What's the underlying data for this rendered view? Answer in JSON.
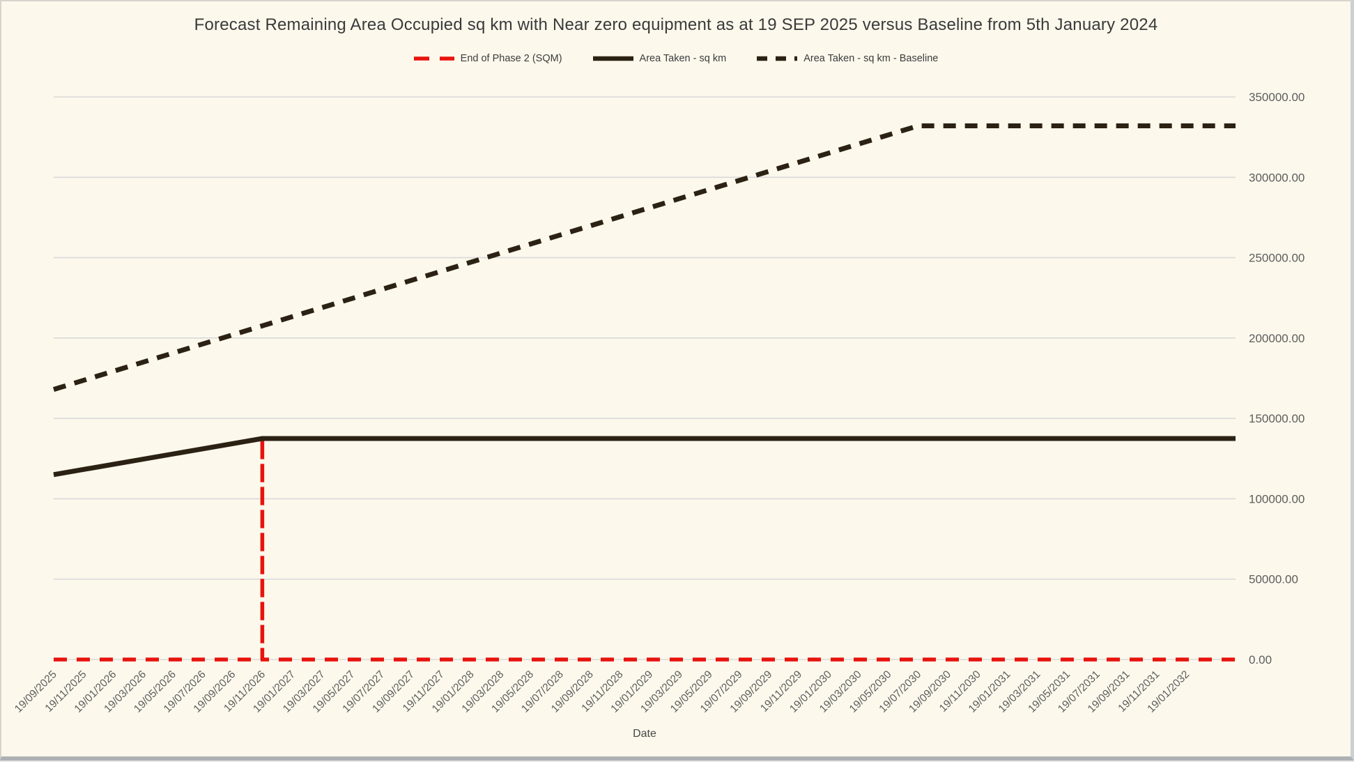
{
  "window": {
    "background_color": "#fcf8ec",
    "gridline_color": "#d9d9d9",
    "axis_text_color": "#5d5d5d",
    "title_text_color": "#3a3a3a"
  },
  "chart_data": {
    "type": "line",
    "title": "Forecast Remaining Area Occupied sq km with Near zero equipment as at 19 SEP 2025 versus Baseline from 5th January 2024",
    "xlabel": "Date",
    "ylabel": "",
    "ylim": [
      0,
      350000
    ],
    "y_tick_labels": [
      "0.00",
      "50000.00",
      "100000.00",
      "150000.00",
      "200000.00",
      "250000.00",
      "300000.00",
      "350000.00"
    ],
    "grid": "horizontal-only",
    "legend_position": "top-center",
    "x_unit": "months since 19/09/2025",
    "x_range": [
      0,
      79.3
    ],
    "x_tick_interval_months": 2,
    "x_tick_labels": [
      "19/09/2025",
      "19/11/2025",
      "19/01/2026",
      "19/03/2026",
      "19/05/2026",
      "19/07/2026",
      "19/09/2026",
      "19/11/2026",
      "19/01/2027",
      "19/03/2027",
      "19/05/2027",
      "19/07/2027",
      "19/09/2027",
      "19/11/2027",
      "19/01/2028",
      "19/03/2028",
      "19/05/2028",
      "19/07/2028",
      "19/09/2028",
      "19/11/2028",
      "19/01/2029",
      "19/03/2029",
      "19/05/2029",
      "19/07/2029",
      "19/09/2029",
      "19/11/2029",
      "19/01/2030",
      "19/03/2030",
      "19/05/2030",
      "19/07/2030",
      "19/09/2030",
      "19/11/2030",
      "19/01/2031",
      "19/03/2031",
      "19/05/2031",
      "19/07/2031",
      "19/09/2031",
      "19/11/2031",
      "19/01/2032"
    ],
    "annotations": {
      "red_spike_date": "19/11/2026",
      "red_spike_value": 137500,
      "area_taken_start_value": 115000,
      "area_taken_plateau_value": 137500,
      "baseline_start_value": 168000,
      "baseline_plateau_date": "19/07/2030",
      "baseline_plateau_value": 332000
    },
    "series": [
      {
        "name": "End of Phase 2 (SQM)",
        "color": "#e8130d",
        "style": "dashed",
        "width": 5.5,
        "dash": "19 14",
        "legend_dash": "22 15",
        "points": [
          [
            0,
            0
          ],
          [
            14,
            0
          ],
          [
            14,
            137500
          ],
          [
            14,
            0
          ],
          [
            79.3,
            0
          ]
        ]
      },
      {
        "name": "Area Taken - sq km",
        "color": "#2b2214",
        "style": "solid",
        "width": 7,
        "dash": "",
        "legend_dash": "",
        "points": [
          [
            0,
            115000
          ],
          [
            14,
            137500
          ],
          [
            79.3,
            137500
          ]
        ]
      },
      {
        "name": "Area Taken - sq km - Baseline",
        "color": "#2b2214",
        "style": "dashed",
        "width": 7,
        "dash": "18 13",
        "legend_dash": "15 12",
        "points": [
          [
            0,
            168000
          ],
          [
            58,
            332000
          ],
          [
            79.3,
            332000
          ]
        ]
      }
    ]
  }
}
